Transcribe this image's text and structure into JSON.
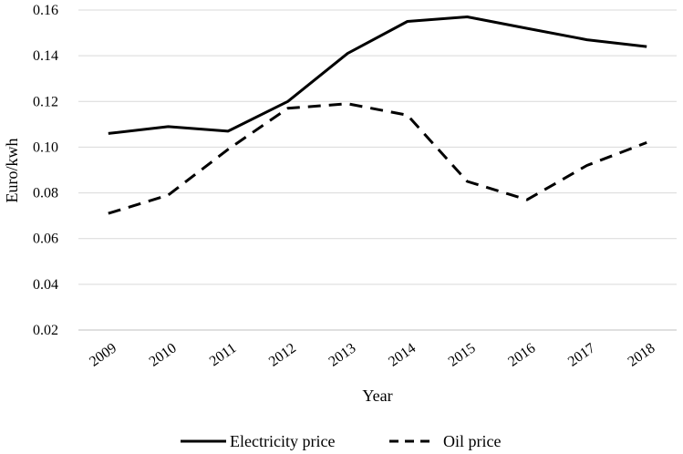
{
  "chart_data": {
    "type": "line",
    "title": "",
    "xlabel": "Year",
    "ylabel": "Euro/kwh",
    "categories": [
      "2009",
      "2010",
      "2011",
      "2012",
      "2013",
      "2014",
      "2015",
      "2016",
      "2017",
      "2018"
    ],
    "ylim": [
      0.02,
      0.16
    ],
    "yticks": [
      "0.02",
      "0.04",
      "0.06",
      "0.08",
      "0.10",
      "0.12",
      "0.14",
      "0.16"
    ],
    "grid": true,
    "legend_position": "bottom",
    "series": [
      {
        "name": "Electricity price",
        "style": "solid",
        "values": [
          0.106,
          0.109,
          0.107,
          0.12,
          0.141,
          0.155,
          0.157,
          0.152,
          0.147,
          0.144
        ]
      },
      {
        "name": "Oil price",
        "style": "dashed",
        "values": [
          0.071,
          0.079,
          0.099,
          0.117,
          0.119,
          0.114,
          0.085,
          0.077,
          0.092,
          0.102
        ]
      }
    ],
    "colors": {
      "line": "#000000",
      "grid": "#d9d9d9",
      "axis": "#bfbfbf"
    }
  }
}
